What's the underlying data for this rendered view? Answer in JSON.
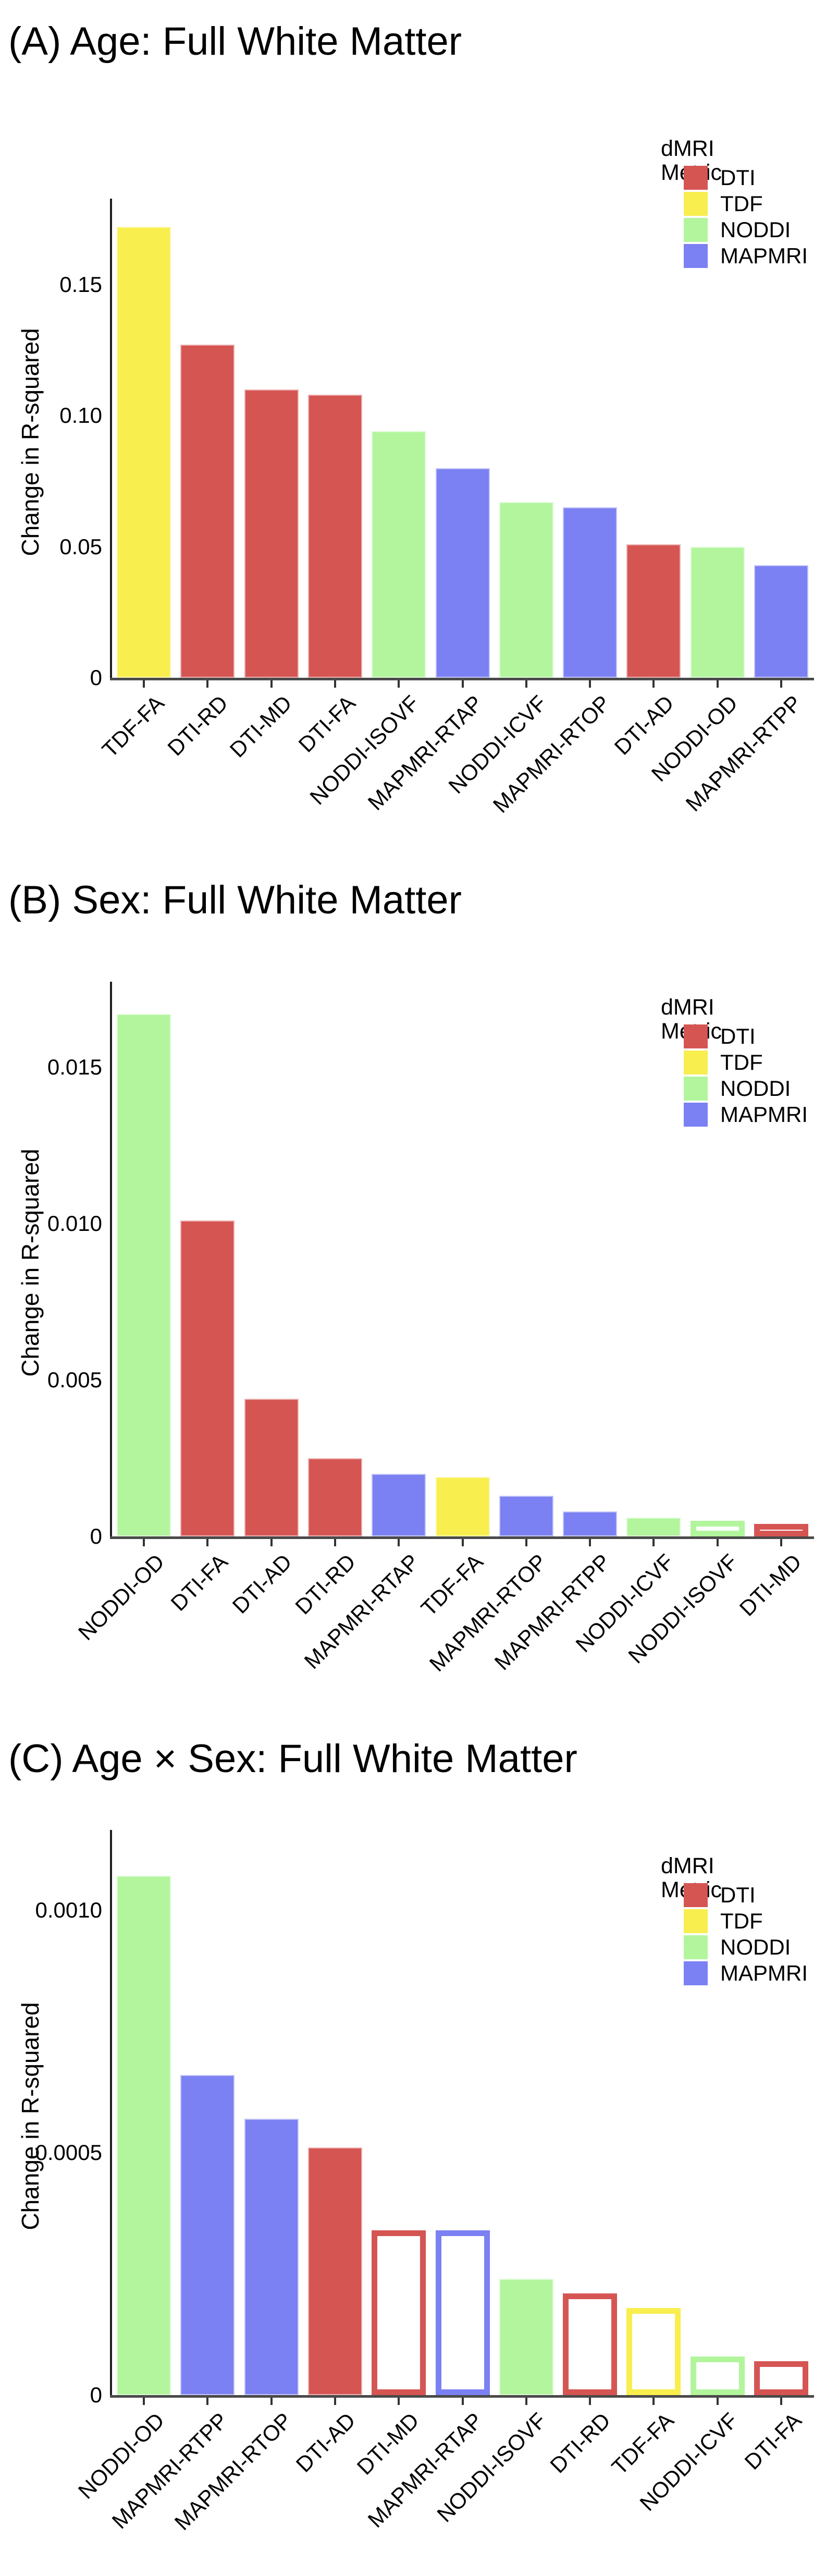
{
  "page": {
    "background": "#ffffff"
  },
  "legend": {
    "title": "dMRI Metric",
    "entries": [
      {
        "label": "DTI",
        "color": "#d55553"
      },
      {
        "label": "TDF",
        "color": "#f8ee4e"
      },
      {
        "label": "NODDI",
        "color": "#b2f59d"
      },
      {
        "label": "MAPMRI",
        "color": "#7b80f2"
      }
    ]
  },
  "colors": {
    "DTI": "#d55553",
    "TDF": "#f8ee4e",
    "NODDI": "#b2f59d",
    "MAPMRI": "#7b80f2",
    "axis": "#333333",
    "text": "#000000"
  },
  "chart_data": [
    {
      "panel": "A",
      "type": "bar",
      "title": "(A) Age: Full White Matter",
      "ylabel": "Change in R-squared",
      "xlabel": "",
      "ylim": [
        0,
        0.18
      ],
      "grid": false,
      "legend_position": "top-right",
      "legend_entries": [
        "DTI",
        "TDF",
        "NODDI",
        "MAPMRI"
      ],
      "yticks": [
        {
          "label": "0",
          "value": 0
        },
        {
          "label": "0.05",
          "value": 0.05
        },
        {
          "label": "0.10",
          "value": 0.1
        },
        {
          "label": "0.15",
          "value": 0.15
        }
      ],
      "bars": [
        {
          "label": "TDF-FA",
          "group": "TDF",
          "value": 0.172,
          "style": "filled"
        },
        {
          "label": "DTI-RD",
          "group": "DTI",
          "value": 0.127,
          "style": "filled"
        },
        {
          "label": "DTI-MD",
          "group": "DTI",
          "value": 0.11,
          "style": "filled"
        },
        {
          "label": "DTI-FA",
          "group": "DTI",
          "value": 0.108,
          "style": "filled"
        },
        {
          "label": "NODDI-ISOVF",
          "group": "NODDI",
          "value": 0.094,
          "style": "filled"
        },
        {
          "label": "MAPMRI-RTAP",
          "group": "MAPMRI",
          "value": 0.08,
          "style": "filled"
        },
        {
          "label": "NODDI-ICVF",
          "group": "NODDI",
          "value": 0.067,
          "style": "filled"
        },
        {
          "label": "MAPMRI-RTOP",
          "group": "MAPMRI",
          "value": 0.065,
          "style": "filled"
        },
        {
          "label": "DTI-AD",
          "group": "DTI",
          "value": 0.051,
          "style": "filled"
        },
        {
          "label": "NODDI-OD",
          "group": "NODDI",
          "value": 0.05,
          "style": "filled"
        },
        {
          "label": "MAPMRI-RTPP",
          "group": "MAPMRI",
          "value": 0.043,
          "style": "filled"
        }
      ]
    },
    {
      "panel": "B",
      "type": "bar",
      "title": "(B) Sex: Full White Matter",
      "ylabel": "Change in R-squared",
      "xlabel": "",
      "ylim": [
        0,
        0.0175
      ],
      "grid": false,
      "legend_position": "top-right",
      "legend_entries": [
        "DTI",
        "TDF",
        "NODDI",
        "MAPMRI"
      ],
      "yticks": [
        {
          "label": "0",
          "value": 0
        },
        {
          "label": "0.005",
          "value": 0.005
        },
        {
          "label": "0.010",
          "value": 0.01
        },
        {
          "label": "0.015",
          "value": 0.015
        }
      ],
      "bars": [
        {
          "label": "NODDI-OD",
          "group": "NODDI",
          "value": 0.0167,
          "style": "filled"
        },
        {
          "label": "DTI-FA",
          "group": "DTI",
          "value": 0.0101,
          "style": "filled"
        },
        {
          "label": "DTI-AD",
          "group": "DTI",
          "value": 0.0044,
          "style": "filled"
        },
        {
          "label": "DTI-RD",
          "group": "DTI",
          "value": 0.0025,
          "style": "filled"
        },
        {
          "label": "MAPMRI-RTAP",
          "group": "MAPMRI",
          "value": 0.002,
          "style": "filled"
        },
        {
          "label": "TDF-FA",
          "group": "TDF",
          "value": 0.0019,
          "style": "filled"
        },
        {
          "label": "MAPMRI-RTOP",
          "group": "MAPMRI",
          "value": 0.0013,
          "style": "filled"
        },
        {
          "label": "MAPMRI-RTPP",
          "group": "MAPMRI",
          "value": 0.0008,
          "style": "filled"
        },
        {
          "label": "NODDI-ICVF",
          "group": "NODDI",
          "value": 0.0006,
          "style": "filled"
        },
        {
          "label": "NODDI-ISOVF",
          "group": "NODDI",
          "value": 0.0005,
          "style": "hollow"
        },
        {
          "label": "DTI-MD",
          "group": "DTI",
          "value": 0.0004,
          "style": "hollow"
        }
      ]
    },
    {
      "panel": "C",
      "type": "bar",
      "title": "(C) Age × Sex: Full White Matter",
      "ylabel": "Change in R-squared",
      "xlabel": "",
      "ylim": [
        0,
        0.00115
      ],
      "grid": false,
      "legend_position": "top-right",
      "legend_entries": [
        "DTI",
        "TDF",
        "NODDI",
        "MAPMRI"
      ],
      "yticks": [
        {
          "label": "0",
          "value": 0
        },
        {
          "label": "0.0005",
          "value": 0.0005
        },
        {
          "label": "0.0010",
          "value": 0.001
        }
      ],
      "bars": [
        {
          "label": "NODDI-OD",
          "group": "NODDI",
          "value": 0.00107,
          "style": "filled"
        },
        {
          "label": "MAPMRI-RTPP",
          "group": "MAPMRI",
          "value": 0.00066,
          "style": "filled"
        },
        {
          "label": "MAPMRI-RTOP",
          "group": "MAPMRI",
          "value": 0.00057,
          "style": "filled"
        },
        {
          "label": "DTI-AD",
          "group": "DTI",
          "value": 0.00051,
          "style": "filled"
        },
        {
          "label": "DTI-MD",
          "group": "DTI",
          "value": 0.00034,
          "style": "hollow"
        },
        {
          "label": "MAPMRI-RTAP",
          "group": "MAPMRI",
          "value": 0.00034,
          "style": "hollow"
        },
        {
          "label": "NODDI-ISOVF",
          "group": "NODDI",
          "value": 0.00024,
          "style": "filled"
        },
        {
          "label": "DTI-RD",
          "group": "DTI",
          "value": 0.00021,
          "style": "hollow"
        },
        {
          "label": "TDF-FA",
          "group": "TDF",
          "value": 0.00018,
          "style": "hollow"
        },
        {
          "label": "NODDI-ICVF",
          "group": "NODDI",
          "value": 8e-05,
          "style": "hollow"
        },
        {
          "label": "DTI-FA",
          "group": "DTI",
          "value": 7e-05,
          "style": "hollow"
        }
      ]
    }
  ]
}
